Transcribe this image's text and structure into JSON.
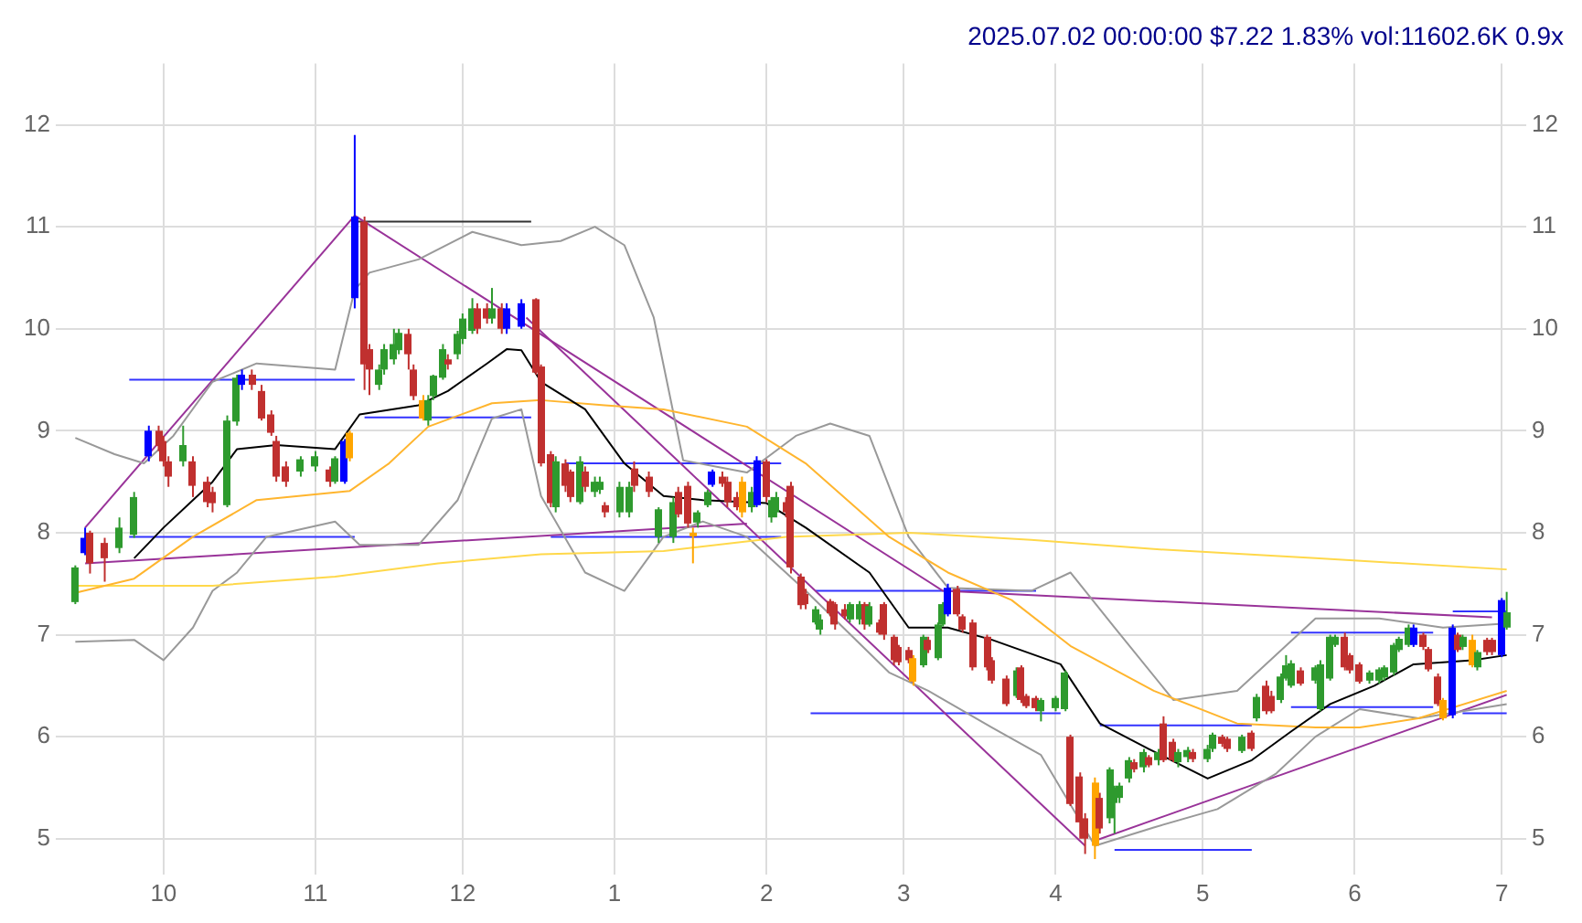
{
  "chart_data": {
    "type": "candlestick",
    "title": "2025.07.02 00:00:00 $7.22 1.83% vol:11602.6K 0.9x",
    "x": [
      "2024-09-13",
      "2024-09-15",
      "2024-09-16",
      "2024-09-19",
      "2024-09-22",
      "2024-09-25",
      "2024-09-28",
      "2024-09-30",
      "2024-10-01",
      "2024-10-02",
      "2024-10-05",
      "2024-10-07",
      "2024-10-10",
      "2024-10-11",
      "2024-10-14",
      "2024-10-16",
      "2024-10-17",
      "2024-10-19",
      "2024-10-21",
      "2024-10-23",
      "2024-10-24",
      "2024-10-26",
      "2024-10-29",
      "2024-11-01",
      "2024-11-04",
      "2024-11-05",
      "2024-11-07",
      "2024-11-08",
      "2024-11-09",
      "2024-11-11",
      "2024-11-12",
      "2024-11-14",
      "2024-11-15",
      "2024-11-17",
      "2024-11-18",
      "2024-11-20",
      "2024-11-21",
      "2024-11-23",
      "2024-11-24",
      "2024-11-25",
      "2024-11-27",
      "2024-11-28",
      "2024-11-30",
      "2024-12-01",
      "2024-12-03",
      "2024-12-04",
      "2024-12-06",
      "2024-12-07",
      "2024-12-09",
      "2024-12-10",
      "2024-12-13",
      "2024-12-16",
      "2024-12-17",
      "2024-12-19",
      "2024-12-20",
      "2024-12-22",
      "2024-12-23",
      "2024-12-25",
      "2024-12-26",
      "2024-12-28",
      "2024-12-29",
      "2024-12-30",
      "2025-01-02",
      "2025-01-04",
      "2025-01-05",
      "2025-01-08",
      "2025-01-10",
      "2025-01-13",
      "2025-01-14",
      "2025-01-16",
      "2025-01-17",
      "2025-01-18",
      "2025-01-20",
      "2025-01-21",
      "2025-01-23",
      "2025-01-24",
      "2025-01-26",
      "2025-01-27",
      "2025-01-29",
      "2025-01-30",
      "2025-02-01",
      "2025-02-02",
      "2025-02-03",
      "2025-02-05",
      "2025-02-06",
      "2025-02-08",
      "2025-02-09",
      "2025-02-11",
      "2025-02-12",
      "2025-02-14",
      "2025-02-15",
      "2025-02-17",
      "2025-02-18",
      "2025-02-20",
      "2025-02-21",
      "2025-02-22",
      "2025-02-24",
      "2025-02-25",
      "2025-02-27",
      "2025-02-28",
      "2025-03-02",
      "2025-03-03",
      "2025-03-05",
      "2025-03-06",
      "2025-03-08",
      "2025-03-09",
      "2025-03-10",
      "2025-03-12",
      "2025-03-13",
      "2025-03-15",
      "2025-03-18",
      "2025-03-19",
      "2025-03-22",
      "2025-03-24",
      "2025-03-25",
      "2025-03-26",
      "2025-03-28",
      "2025-03-29",
      "2025-04-01",
      "2025-04-03",
      "2025-04-04",
      "2025-04-06",
      "2025-04-07",
      "2025-04-09",
      "2025-04-10",
      "2025-04-12",
      "2025-04-13",
      "2025-04-14",
      "2025-04-16",
      "2025-04-17",
      "2025-04-19",
      "2025-04-20",
      "2025-04-22",
      "2025-04-23",
      "2025-04-25",
      "2025-04-26",
      "2025-04-28",
      "2025-04-29",
      "2025-05-02",
      "2025-05-03",
      "2025-05-05",
      "2025-05-06",
      "2025-05-09",
      "2025-05-11",
      "2025-05-12",
      "2025-05-14",
      "2025-05-15",
      "2025-05-17",
      "2025-05-18",
      "2025-05-19",
      "2025-05-21",
      "2025-05-24",
      "2025-05-25",
      "2025-05-27",
      "2025-05-28",
      "2025-05-30",
      "2025-05-31",
      "2025-06-02",
      "2025-06-04",
      "2025-06-06",
      "2025-06-07",
      "2025-06-09",
      "2025-06-10",
      "2025-06-12",
      "2025-06-13",
      "2025-06-15",
      "2025-06-16",
      "2025-06-18",
      "2025-06-19",
      "2025-06-21",
      "2025-06-22",
      "2025-06-23",
      "2025-06-25",
      "2025-06-26",
      "2025-06-28",
      "2025-06-29",
      "2025-07-01",
      "2025-07-02"
    ],
    "ohlc": [
      [
        7.32,
        7.68,
        7.3,
        7.66
      ],
      [
        7.8,
        8.05,
        7.78,
        7.95
      ],
      [
        8.0,
        8.02,
        7.6,
        7.7
      ],
      [
        7.9,
        7.95,
        7.52,
        7.75
      ],
      [
        7.85,
        8.15,
        7.8,
        8.05
      ],
      [
        7.98,
        8.4,
        7.95,
        8.35
      ],
      [
        8.75,
        9.05,
        8.7,
        9.0
      ],
      [
        9.0,
        9.05,
        8.8,
        8.85
      ],
      [
        8.9,
        8.95,
        8.65,
        8.7
      ],
      [
        8.7,
        8.75,
        8.45,
        8.55
      ],
      [
        8.7,
        9.05,
        8.65,
        8.86
      ],
      [
        8.7,
        8.75,
        8.35,
        8.46
      ],
      [
        8.5,
        8.55,
        8.25,
        8.3
      ],
      [
        8.4,
        8.45,
        8.2,
        8.29
      ],
      [
        8.27,
        9.15,
        8.25,
        9.1
      ],
      [
        9.09,
        9.55,
        9.05,
        9.52
      ],
      [
        9.45,
        9.6,
        9.4,
        9.55
      ],
      [
        9.55,
        9.6,
        9.4,
        9.45
      ],
      [
        9.39,
        9.45,
        9.1,
        9.12
      ],
      [
        9.16,
        9.2,
        8.95,
        8.98
      ],
      [
        8.9,
        8.95,
        8.5,
        8.55
      ],
      [
        8.65,
        8.7,
        8.45,
        8.5
      ],
      [
        8.6,
        8.75,
        8.55,
        8.72
      ],
      [
        8.65,
        8.8,
        8.6,
        8.75
      ],
      [
        8.62,
        8.65,
        8.45,
        8.5
      ],
      [
        8.5,
        8.75,
        8.48,
        8.73
      ],
      [
        8.5,
        8.92,
        8.48,
        8.9
      ],
      [
        8.98,
        9.0,
        8.7,
        8.73
      ],
      [
        10.3,
        11.9,
        10.2,
        11.1
      ],
      [
        11.05,
        11.1,
        9.4,
        9.65
      ],
      [
        9.8,
        9.85,
        9.35,
        9.6
      ],
      [
        9.45,
        9.65,
        9.4,
        9.6
      ],
      [
        9.6,
        9.85,
        9.55,
        9.8
      ],
      [
        9.7,
        10.0,
        9.65,
        9.85
      ],
      [
        9.79,
        10.0,
        9.75,
        9.96
      ],
      [
        9.95,
        10.0,
        9.6,
        9.75
      ],
      [
        9.6,
        9.65,
        9.3,
        9.34
      ],
      [
        9.3,
        9.35,
        9.1,
        9.12
      ],
      [
        9.1,
        9.35,
        9.05,
        9.3
      ],
      [
        9.34,
        9.55,
        9.3,
        9.54
      ],
      [
        9.52,
        9.85,
        9.5,
        9.8
      ],
      [
        9.7,
        9.75,
        9.6,
        9.65
      ],
      [
        9.75,
        9.98,
        9.7,
        9.95
      ],
      [
        9.9,
        10.15,
        9.85,
        10.1
      ],
      [
        9.98,
        10.3,
        9.95,
        10.2
      ],
      [
        10.2,
        10.25,
        9.95,
        10.0
      ],
      [
        10.2,
        10.25,
        10.05,
        10.1
      ],
      [
        10.1,
        10.4,
        10.05,
        10.2
      ],
      [
        10.2,
        10.25,
        9.95,
        10.0
      ],
      [
        10.0,
        10.25,
        9.95,
        10.2
      ],
      [
        10.02,
        10.29,
        10.0,
        10.25
      ],
      [
        10.29,
        10.3,
        9.55,
        9.57
      ],
      [
        9.63,
        9.65,
        8.65,
        8.68
      ],
      [
        8.77,
        8.8,
        8.25,
        8.29
      ],
      [
        8.25,
        8.75,
        8.2,
        8.7
      ],
      [
        8.68,
        8.72,
        8.4,
        8.46
      ],
      [
        8.6,
        8.62,
        8.3,
        8.35
      ],
      [
        8.3,
        8.75,
        8.28,
        8.7
      ],
      [
        8.6,
        8.65,
        8.4,
        8.45
      ],
      [
        8.4,
        8.55,
        8.35,
        8.5
      ],
      [
        8.42,
        8.55,
        8.38,
        8.5
      ],
      [
        8.27,
        8.3,
        8.15,
        8.2
      ],
      [
        8.2,
        8.5,
        8.15,
        8.45
      ],
      [
        8.2,
        8.5,
        8.15,
        8.45
      ],
      [
        8.63,
        8.7,
        8.4,
        8.46
      ],
      [
        8.55,
        8.6,
        8.35,
        8.4
      ],
      [
        7.96,
        8.25,
        7.9,
        8.23
      ],
      [
        7.96,
        8.35,
        7.9,
        8.3
      ],
      [
        8.4,
        8.45,
        8.15,
        8.18
      ],
      [
        8.46,
        8.5,
        8.05,
        8.09
      ],
      [
        8.0,
        8.05,
        7.7,
        7.98
      ],
      [
        8.1,
        8.22,
        8.05,
        8.2
      ],
      [
        8.27,
        8.42,
        8.25,
        8.4
      ],
      [
        8.47,
        8.62,
        8.45,
        8.6
      ],
      [
        8.55,
        8.6,
        8.45,
        8.48
      ],
      [
        8.5,
        8.55,
        8.25,
        8.3
      ],
      [
        8.35,
        8.4,
        8.22,
        8.25
      ],
      [
        8.5,
        8.55,
        8.15,
        8.2
      ],
      [
        8.25,
        8.45,
        8.2,
        8.4
      ],
      [
        8.27,
        8.75,
        8.25,
        8.71
      ],
      [
        8.7,
        8.72,
        8.3,
        8.35
      ],
      [
        8.15,
        8.35,
        8.1,
        8.32
      ],
      [
        8.2,
        8.4,
        8.15,
        8.35
      ],
      [
        8.3,
        8.35,
        8.15,
        8.2
      ],
      [
        8.46,
        8.5,
        7.6,
        7.66
      ],
      [
        7.57,
        7.6,
        7.25,
        7.29
      ],
      [
        7.4,
        7.45,
        7.25,
        7.3
      ],
      [
        7.12,
        7.28,
        7.1,
        7.25
      ],
      [
        7.05,
        7.2,
        7.0,
        7.15
      ],
      [
        7.33,
        7.35,
        7.18,
        7.21
      ],
      [
        7.3,
        7.32,
        7.05,
        7.1
      ],
      [
        7.25,
        7.3,
        7.15,
        7.18
      ],
      [
        7.15,
        7.32,
        7.12,
        7.3
      ],
      [
        7.15,
        7.33,
        7.1,
        7.3
      ],
      [
        7.3,
        7.32,
        7.05,
        7.1
      ],
      [
        7.1,
        7.32,
        7.08,
        7.28
      ],
      [
        7.12,
        7.15,
        7.0,
        7.02
      ],
      [
        7.3,
        7.32,
        6.95,
        7.0
      ],
      [
        6.98,
        7.0,
        6.7,
        6.75
      ],
      [
        6.88,
        6.9,
        6.7,
        6.73
      ],
      [
        6.85,
        6.88,
        6.72,
        6.75
      ],
      [
        6.77,
        6.8,
        6.5,
        6.54
      ],
      [
        6.7,
        7.0,
        6.68,
        6.98
      ],
      [
        6.95,
        6.98,
        6.82,
        6.85
      ],
      [
        6.77,
        7.12,
        6.75,
        7.1
      ],
      [
        7.1,
        7.32,
        7.08,
        7.3
      ],
      [
        7.2,
        7.5,
        7.18,
        7.46
      ],
      [
        7.45,
        7.48,
        7.18,
        7.2
      ],
      [
        7.18,
        7.2,
        7.02,
        7.05
      ],
      [
        7.12,
        7.15,
        6.65,
        6.68
      ],
      [
        6.98,
        7.0,
        6.65,
        6.68
      ],
      [
        6.75,
        6.78,
        6.52,
        6.55
      ],
      [
        6.57,
        6.6,
        6.3,
        6.32
      ],
      [
        6.4,
        6.68,
        6.38,
        6.65
      ],
      [
        6.68,
        6.7,
        6.33,
        6.36
      ],
      [
        6.4,
        6.42,
        6.28,
        6.3
      ],
      [
        6.38,
        6.4,
        6.25,
        6.28
      ],
      [
        6.25,
        6.38,
        6.15,
        6.36
      ],
      [
        6.28,
        6.4,
        6.25,
        6.38
      ],
      [
        6.27,
        6.65,
        6.25,
        6.63
      ],
      [
        6.0,
        6.02,
        5.32,
        5.34
      ],
      [
        5.61,
        5.65,
        5.0,
        5.16
      ],
      [
        5.2,
        5.25,
        4.85,
        5.0
      ],
      [
        5.55,
        5.6,
        4.8,
        4.93
      ],
      [
        5.4,
        5.45,
        5.05,
        5.1
      ],
      [
        5.2,
        5.7,
        5.15,
        5.68
      ],
      [
        5.35,
        5.52,
        5.05,
        5.5
      ],
      [
        5.4,
        5.55,
        5.35,
        5.52
      ],
      [
        5.59,
        5.8,
        5.55,
        5.77
      ],
      [
        5.75,
        5.78,
        5.65,
        5.68
      ],
      [
        5.7,
        5.88,
        5.65,
        5.85
      ],
      [
        5.8,
        5.82,
        5.7,
        5.72
      ],
      [
        5.77,
        5.88,
        5.72,
        5.85
      ],
      [
        6.13,
        6.2,
        5.75,
        5.77
      ],
      [
        5.95,
        5.98,
        5.75,
        5.77
      ],
      [
        5.75,
        5.88,
        5.7,
        5.85
      ],
      [
        5.8,
        5.9,
        5.75,
        5.87
      ],
      [
        5.85,
        5.88,
        5.75,
        5.78
      ],
      [
        5.78,
        5.92,
        5.75,
        5.88
      ],
      [
        5.88,
        6.04,
        5.85,
        6.02
      ],
      [
        6.0,
        6.02,
        5.9,
        5.93
      ],
      [
        5.98,
        6.0,
        5.85,
        5.88
      ],
      [
        5.86,
        6.02,
        5.84,
        6.0
      ],
      [
        6.04,
        6.06,
        5.86,
        5.88
      ],
      [
        6.18,
        6.42,
        6.15,
        6.39
      ],
      [
        6.5,
        6.55,
        6.22,
        6.25
      ],
      [
        6.4,
        6.45,
        6.23,
        6.25
      ],
      [
        6.36,
        6.62,
        6.33,
        6.59
      ],
      [
        6.57,
        6.8,
        6.55,
        6.7
      ],
      [
        6.5,
        6.75,
        6.48,
        6.72
      ],
      [
        6.65,
        6.68,
        6.5,
        6.52
      ],
      [
        6.55,
        6.7,
        6.52,
        6.68
      ],
      [
        6.27,
        6.75,
        6.25,
        6.71
      ],
      [
        6.57,
        7.0,
        6.55,
        6.98
      ],
      [
        6.9,
        7.0,
        6.88,
        6.98
      ],
      [
        6.98,
        7.02,
        6.65,
        6.68
      ],
      [
        6.8,
        6.82,
        6.62,
        6.65
      ],
      [
        6.71,
        6.73,
        6.52,
        6.54
      ],
      [
        6.55,
        6.65,
        6.52,
        6.63
      ],
      [
        6.55,
        6.68,
        6.52,
        6.66
      ],
      [
        6.58,
        6.7,
        6.55,
        6.68
      ],
      [
        6.63,
        6.92,
        6.6,
        6.9
      ],
      [
        6.85,
        6.98,
        6.83,
        6.96
      ],
      [
        6.9,
        7.1,
        6.88,
        7.07
      ],
      [
        6.9,
        7.1,
        6.88,
        7.07
      ],
      [
        7.0,
        7.02,
        6.85,
        6.88
      ],
      [
        6.86,
        6.88,
        6.64,
        6.66
      ],
      [
        6.59,
        6.62,
        6.3,
        6.32
      ],
      [
        6.36,
        6.38,
        6.16,
        6.18
      ],
      [
        6.21,
        7.1,
        6.18,
        7.07
      ],
      [
        7.0,
        7.02,
        6.83,
        6.85
      ],
      [
        6.88,
        7.0,
        6.85,
        6.98
      ],
      [
        6.95,
        7.0,
        6.68,
        6.7
      ],
      [
        6.68,
        6.85,
        6.65,
        6.83
      ],
      [
        6.95,
        6.97,
        6.8,
        6.83
      ],
      [
        6.95,
        6.97,
        6.8,
        6.83
      ],
      [
        6.8,
        7.36,
        6.78,
        7.34
      ],
      [
        7.07,
        7.42,
        7.05,
        7.22
      ]
    ],
    "colors": [
      "#2e9a2e",
      "#0000ff",
      "#c0302f",
      "#c0302f",
      "#2e9a2e",
      "#2e9a2e",
      "#0000ff",
      "#c0302f",
      "#c0302f",
      "#c0302f",
      "#2e9a2e",
      "#c0302f",
      "#c0302f",
      "#c0302f",
      "#2e9a2e",
      "#2e9a2e",
      "#0000ff",
      "#c0302f",
      "#c0302f",
      "#c0302f",
      "#c0302f",
      "#c0302f",
      "#2e9a2e",
      "#2e9a2e",
      "#c0302f",
      "#2e9a2e",
      "#0000ff",
      "#ffa500",
      "#0000ff",
      "#c0302f",
      "#c0302f",
      "#2e9a2e",
      "#2e9a2e",
      "#2e9a2e",
      "#2e9a2e",
      "#c0302f",
      "#c0302f",
      "#ffa500",
      "#2e9a2e",
      "#2e9a2e",
      "#2e9a2e",
      "#c0302f",
      "#2e9a2e",
      "#2e9a2e",
      "#2e9a2e",
      "#c0302f",
      "#c0302f",
      "#2e9a2e",
      "#c0302f",
      "#0000ff",
      "#0000ff",
      "#c0302f",
      "#c0302f",
      "#c0302f",
      "#2e9a2e",
      "#c0302f",
      "#c0302f",
      "#2e9a2e",
      "#c0302f",
      "#2e9a2e",
      "#2e9a2e",
      "#c0302f",
      "#2e9a2e",
      "#2e9a2e",
      "#c0302f",
      "#c0302f",
      "#2e9a2e",
      "#2e9a2e",
      "#c0302f",
      "#c0302f",
      "#ffa500",
      "#2e9a2e",
      "#2e9a2e",
      "#0000ff",
      "#c0302f",
      "#c0302f",
      "#c0302f",
      "#ffa500",
      "#2e9a2e",
      "#0000ff",
      "#c0302f",
      "#2e9a2e",
      "#2e9a2e",
      "#c0302f",
      "#c0302f",
      "#c0302f",
      "#c0302f",
      "#2e9a2e",
      "#2e9a2e",
      "#c0302f",
      "#c0302f",
      "#c0302f",
      "#2e9a2e",
      "#2e9a2e",
      "#c0302f",
      "#2e9a2e",
      "#c0302f",
      "#c0302f",
      "#c0302f",
      "#c0302f",
      "#c0302f",
      "#ffa500",
      "#2e9a2e",
      "#c0302f",
      "#2e9a2e",
      "#2e9a2e",
      "#0000ff",
      "#c0302f",
      "#c0302f",
      "#c0302f",
      "#c0302f",
      "#c0302f",
      "#c0302f",
      "#2e9a2e",
      "#c0302f",
      "#c0302f",
      "#c0302f",
      "#2e9a2e",
      "#2e9a2e",
      "#2e9a2e",
      "#c0302f",
      "#c0302f",
      "#c0302f",
      "#ffa500",
      "#c0302f",
      "#2e9a2e",
      "#2e9a2e",
      "#2e9a2e",
      "#2e9a2e",
      "#c0302f",
      "#2e9a2e",
      "#c0302f",
      "#2e9a2e",
      "#c0302f",
      "#c0302f",
      "#2e9a2e",
      "#2e9a2e",
      "#c0302f",
      "#2e9a2e",
      "#2e9a2e",
      "#c0302f",
      "#c0302f",
      "#2e9a2e",
      "#c0302f",
      "#2e9a2e",
      "#c0302f",
      "#c0302f",
      "#2e9a2e",
      "#2e9a2e",
      "#2e9a2e",
      "#c0302f",
      "#2e9a2e",
      "#2e9a2e",
      "#2e9a2e",
      "#2e9a2e",
      "#c0302f",
      "#c0302f",
      "#c0302f",
      "#2e9a2e",
      "#2e9a2e",
      "#2e9a2e",
      "#2e9a2e",
      "#2e9a2e",
      "#2e9a2e",
      "#0000ff",
      "#c0302f",
      "#c0302f",
      "#c0302f",
      "#ffa500",
      "#0000ff",
      "#c0302f",
      "#2e9a2e",
      "#ffa500",
      "#2e9a2e",
      "#c0302f",
      "#c0302f",
      "#0000ff",
      "#2e9a2e"
    ],
    "series": [
      {
        "type": "line",
        "color": "#000000",
        "x": [
          "2024-09-25",
          "2024-10-01",
          "2024-10-07",
          "2024-10-11",
          "2024-10-16",
          "2024-10-24",
          "2024-11-05",
          "2024-11-10",
          "2024-11-22",
          "2024-11-28",
          "2024-12-06",
          "2024-12-10",
          "2024-12-13",
          "2024-12-17",
          "2024-12-26",
          "2025-01-03",
          "2025-01-11",
          "2025-01-19",
          "2025-02-01",
          "2025-02-09",
          "2025-02-22",
          "2025-03-02",
          "2025-03-10",
          "2025-03-19",
          "2025-04-02",
          "2025-04-10",
          "2025-04-20",
          "2025-05-02",
          "2025-05-11",
          "2025-05-19",
          "2025-05-27",
          "2025-06-05",
          "2025-06-13",
          "2025-06-25",
          "2025-07-02"
        ],
        "values": [
          7.75,
          8.05,
          8.32,
          8.5,
          8.82,
          8.86,
          8.82,
          9.16,
          9.25,
          9.39,
          9.66,
          9.8,
          9.79,
          9.48,
          9.21,
          8.68,
          8.36,
          8.32,
          8.29,
          8.05,
          7.61,
          7.07,
          7.07,
          6.95,
          6.71,
          6.13,
          5.88,
          5.59,
          5.77,
          6.05,
          6.32,
          6.5,
          6.71,
          6.75,
          6.8
        ]
      },
      {
        "type": "line",
        "color": "#ffb52e",
        "x": [
          "2024-09-13",
          "2024-09-25",
          "2024-10-07",
          "2024-10-20",
          "2024-11-08",
          "2024-11-16",
          "2024-11-24",
          "2024-12-07",
          "2024-12-17",
          "2024-12-30",
          "2025-01-11",
          "2025-01-28",
          "2025-02-09",
          "2025-02-26",
          "2025-03-10",
          "2025-03-23",
          "2025-04-04",
          "2025-04-21",
          "2025-05-08",
          "2025-05-24",
          "2025-06-02",
          "2025-06-14",
          "2025-07-02"
        ],
        "values": [
          7.41,
          7.55,
          7.96,
          8.32,
          8.41,
          8.68,
          9.04,
          9.27,
          9.3,
          9.25,
          9.21,
          9.04,
          8.68,
          7.96,
          7.61,
          7.34,
          6.89,
          6.45,
          6.13,
          6.09,
          6.09,
          6.18,
          6.45
        ]
      },
      {
        "type": "line",
        "color": "#ffd84a",
        "x": [
          "2024-09-13",
          "2024-09-25",
          "2024-10-11",
          "2024-11-05",
          "2024-11-26",
          "2024-12-17",
          "2025-01-11",
          "2025-02-05",
          "2025-03-02",
          "2025-03-27",
          "2025-04-21",
          "2025-05-24",
          "2025-07-02"
        ],
        "values": [
          7.48,
          7.48,
          7.48,
          7.57,
          7.7,
          7.79,
          7.82,
          7.96,
          8.0,
          7.93,
          7.84,
          7.75,
          7.64
        ]
      },
      {
        "type": "line",
        "color": "#999999",
        "x": [
          "2024-09-13",
          "2024-09-21",
          "2024-09-27",
          "2024-10-03",
          "2024-10-11",
          "2024-10-20",
          "2024-11-05",
          "2024-11-09",
          "2024-11-12",
          "2024-11-22",
          "2024-12-03",
          "2024-12-13",
          "2024-12-21",
          "2024-12-28",
          "2025-01-03",
          "2025-01-09",
          "2025-01-15",
          "2025-01-28",
          "2025-02-07",
          "2025-02-14",
          "2025-02-22",
          "2025-03-02",
          "2025-03-10",
          "2025-03-27",
          "2025-04-04",
          "2025-04-13",
          "2025-04-25",
          "2025-05-08",
          "2025-05-24",
          "2025-06-06",
          "2025-06-19",
          "2025-07-02"
        ],
        "values": [
          8.93,
          8.77,
          8.68,
          8.95,
          9.48,
          9.66,
          9.6,
          10.38,
          10.55,
          10.68,
          10.95,
          10.82,
          10.86,
          11.0,
          10.82,
          10.11,
          8.71,
          8.59,
          8.95,
          9.07,
          8.95,
          7.96,
          7.46,
          7.43,
          7.61,
          7.07,
          6.36,
          6.45,
          7.16,
          7.16,
          7.07,
          7.11
        ]
      },
      {
        "type": "line",
        "color": "#999999",
        "x": [
          "2024-09-13",
          "2024-09-25",
          "2024-10-01",
          "2024-10-07",
          "2024-10-11",
          "2024-10-16",
          "2024-10-22",
          "2024-11-05",
          "2024-11-10",
          "2024-11-22",
          "2024-11-30",
          "2024-12-07",
          "2024-12-13",
          "2024-12-17",
          "2024-12-26",
          "2025-01-03",
          "2025-01-11",
          "2025-01-19",
          "2025-01-28",
          "2025-02-09",
          "2025-02-26",
          "2025-03-06",
          "2025-03-19",
          "2025-03-29",
          "2025-04-09",
          "2025-04-21",
          "2025-05-04",
          "2025-05-16",
          "2025-05-24",
          "2025-06-02",
          "2025-06-14",
          "2025-07-02"
        ],
        "values": [
          6.93,
          6.95,
          6.75,
          7.07,
          7.43,
          7.61,
          7.96,
          8.11,
          7.88,
          7.88,
          8.32,
          9.12,
          9.21,
          8.36,
          7.61,
          7.43,
          7.96,
          8.11,
          7.96,
          7.43,
          6.63,
          6.45,
          6.09,
          5.82,
          4.93,
          5.11,
          5.29,
          5.64,
          6.0,
          6.27,
          6.18,
          6.32
        ]
      },
      {
        "type": "line",
        "color": "#993399",
        "x": [
          "2024-09-15",
          "2024-11-09"
        ],
        "values": [
          8.05,
          11.11
        ]
      },
      {
        "type": "line",
        "color": "#993399",
        "x": [
          "2024-11-09",
          "2025-03-09",
          "2025-06-29"
        ],
        "values": [
          11.11,
          7.43,
          7.17
        ]
      },
      {
        "type": "line",
        "color": "#993399",
        "x": [
          "2024-12-14",
          "2025-04-07"
        ],
        "values": [
          10.11,
          4.93
        ]
      },
      {
        "type": "line",
        "color": "#993399",
        "x": [
          "2024-09-15",
          "2025-01-28"
        ],
        "values": [
          7.7,
          8.09
        ]
      },
      {
        "type": "line",
        "color": "#993399",
        "x": [
          "2025-04-09",
          "2025-07-02"
        ],
        "values": [
          4.98,
          6.41
        ]
      },
      {
        "type": "line",
        "color": "#3333ff",
        "x": [
          "2024-09-24",
          "2024-11-09"
        ],
        "values": [
          9.5,
          9.5
        ]
      },
      {
        "type": "line",
        "color": "#3333ff",
        "x": [
          "2024-09-24",
          "2024-11-09"
        ],
        "values": [
          7.96,
          7.96
        ]
      },
      {
        "type": "line",
        "color": "#333333",
        "x": [
          "2024-11-09",
          "2024-12-15"
        ],
        "values": [
          11.05,
          11.05
        ]
      },
      {
        "type": "line",
        "color": "#3333ff",
        "x": [
          "2024-11-11",
          "2024-12-15"
        ],
        "values": [
          9.13,
          9.13
        ]
      },
      {
        "type": "line",
        "color": "#3333ff",
        "x": [
          "2024-12-22",
          "2025-02-04"
        ],
        "values": [
          8.68,
          8.68
        ]
      },
      {
        "type": "line",
        "color": "#3333ff",
        "x": [
          "2024-12-19",
          "2025-02-04"
        ],
        "values": [
          7.96,
          7.96
        ]
      },
      {
        "type": "line",
        "color": "#3333ff",
        "x": [
          "2025-02-11",
          "2025-03-28"
        ],
        "values": [
          7.43,
          7.43
        ]
      },
      {
        "type": "line",
        "color": "#3333ff",
        "x": [
          "2025-02-10",
          "2025-04-02"
        ],
        "values": [
          6.23,
          6.23
        ]
      },
      {
        "type": "line",
        "color": "#3333ff",
        "x": [
          "2025-04-10",
          "2025-05-11"
        ],
        "values": [
          6.11,
          6.11
        ]
      },
      {
        "type": "line",
        "color": "#3333ff",
        "x": [
          "2025-04-13",
          "2025-05-11"
        ],
        "values": [
          4.89,
          4.89
        ]
      },
      {
        "type": "line",
        "color": "#3333ff",
        "x": [
          "2025-05-19",
          "2025-06-17"
        ],
        "values": [
          7.02,
          7.02
        ]
      },
      {
        "type": "line",
        "color": "#3333ff",
        "x": [
          "2025-05-19",
          "2025-06-17"
        ],
        "values": [
          6.29,
          6.29
        ]
      },
      {
        "type": "line",
        "color": "#3333ff",
        "x": [
          "2025-06-21",
          "2025-07-02"
        ],
        "values": [
          7.23,
          7.23
        ]
      },
      {
        "type": "line",
        "color": "#3333ff",
        "x": [
          "2025-06-23",
          "2025-07-02"
        ],
        "values": [
          6.23,
          6.23
        ]
      }
    ],
    "xlim": [
      "2024-09-09",
      "2025-07-06"
    ],
    "xticks": [
      {
        "value": "2024-10-01",
        "label": "10"
      },
      {
        "value": "2024-11-01",
        "label": "11"
      },
      {
        "value": "2024-12-01",
        "label": "12"
      },
      {
        "value": "2025-01-01",
        "label": "1"
      },
      {
        "value": "2025-02-01",
        "label": "2"
      },
      {
        "value": "2025-03-01",
        "label": "3"
      },
      {
        "value": "2025-04-01",
        "label": "4"
      },
      {
        "value": "2025-05-01",
        "label": "5"
      },
      {
        "value": "2025-06-01",
        "label": "6"
      },
      {
        "value": "2025-07-01",
        "label": "7"
      }
    ],
    "ylim": [
      4.65,
      12.6
    ],
    "yticks": [
      5,
      6,
      7,
      8,
      9,
      10,
      11,
      12
    ],
    "y2lim": [
      4.65,
      12.6
    ],
    "y2ticks": [
      5,
      6,
      7,
      8,
      9,
      10,
      11,
      12
    ],
    "grid": true
  }
}
